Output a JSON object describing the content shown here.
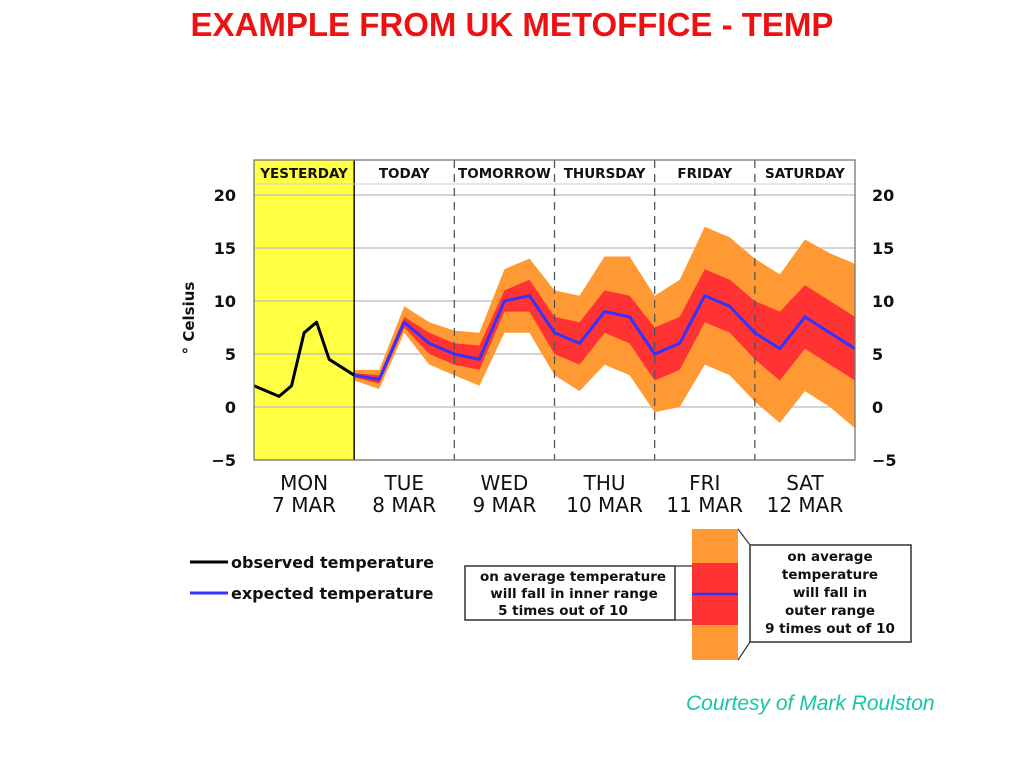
{
  "page_title": "EXAMPLE FROM UK METOFFICE - TEMP",
  "credit": "Courtesy of Mark Roulston",
  "colors": {
    "title": "#ee1111",
    "yesterday_bg": "#ffff44",
    "outer_range": "#ff9933",
    "inner_range": "#ff3333",
    "observed": "#000000",
    "expected": "#3333ff",
    "credit": "#14c8a0"
  },
  "chart_data": {
    "type": "line",
    "ylabel": "° Celsius",
    "ylim": [
      -5,
      20
    ],
    "yticks": [
      "20",
      "15",
      "10",
      "5",
      "0",
      "−5"
    ],
    "ytick_values": [
      20,
      15,
      10,
      5,
      0,
      -5
    ],
    "xlim": [
      0,
      6
    ],
    "grid": true,
    "period_labels": [
      "YESTERDAY",
      "TODAY",
      "TOMORROW",
      "THURSDAY",
      "FRIDAY",
      "SATURDAY"
    ],
    "day_labels": [
      {
        "day": "MON",
        "date": "7 MAR"
      },
      {
        "day": "TUE",
        "date": "8 MAR"
      },
      {
        "day": "WED",
        "date": "9 MAR"
      },
      {
        "day": "THU",
        "date": "10 MAR"
      },
      {
        "day": "FRI",
        "date": "11 MAR"
      },
      {
        "day": "SAT",
        "date": "12 MAR"
      }
    ],
    "observed": {
      "name": "observed temperature",
      "x": [
        0,
        0.25,
        0.375,
        0.5,
        0.625,
        0.75,
        1.0
      ],
      "y": [
        2.0,
        1.0,
        2.0,
        7.0,
        8.0,
        4.5,
        3.0
      ]
    },
    "expected": {
      "name": "expected temperature",
      "x": [
        1.0,
        1.25,
        1.5,
        1.75,
        2.0,
        2.25,
        2.5,
        2.75,
        3.0,
        3.25,
        3.5,
        3.75,
        4.0,
        4.25,
        4.5,
        4.75,
        5.0,
        5.25,
        5.5,
        5.75,
        6.0
      ],
      "y": [
        3.0,
        2.6,
        8.0,
        6.0,
        5.0,
        4.5,
        10.0,
        10.5,
        7.0,
        6.0,
        9.0,
        8.5,
        5.0,
        6.0,
        10.5,
        9.5,
        7.0,
        5.5,
        8.5,
        7.0,
        5.5
      ]
    },
    "inner_range": {
      "upper": [
        3.2,
        3.0,
        8.5,
        7.0,
        6.0,
        5.8,
        11.0,
        12.0,
        8.5,
        8.0,
        11.0,
        10.5,
        7.5,
        8.5,
        13.0,
        12.0,
        10.0,
        9.0,
        11.5,
        10.0,
        8.5
      ],
      "lower": [
        2.8,
        2.2,
        7.5,
        5.0,
        4.0,
        3.5,
        9.0,
        9.0,
        5.0,
        4.0,
        7.0,
        6.0,
        2.5,
        3.5,
        8.0,
        7.0,
        4.5,
        2.5,
        5.5,
        4.0,
        2.5
      ]
    },
    "outer_range": {
      "upper": [
        3.5,
        3.5,
        9.5,
        8.0,
        7.2,
        7.0,
        13.0,
        14.0,
        11.0,
        10.5,
        14.2,
        14.2,
        10.5,
        12.0,
        17.0,
        16.0,
        14.0,
        12.5,
        15.8,
        14.5,
        13.5
      ],
      "lower": [
        2.5,
        1.7,
        7.0,
        4.0,
        3.0,
        2.0,
        7.0,
        7.0,
        3.0,
        1.5,
        4.0,
        3.0,
        -0.5,
        0.0,
        4.0,
        3.0,
        0.5,
        -1.5,
        1.5,
        0.0,
        -2.0
      ]
    },
    "legend": {
      "observed": "observed temperature",
      "expected": "expected temperature",
      "inner_note": [
        "on average temperature",
        "will fall in inner range",
        "5 times out of 10"
      ],
      "outer_note": [
        "on average",
        "temperature",
        "will fall in",
        "outer range",
        "9 times out of 10"
      ]
    }
  }
}
